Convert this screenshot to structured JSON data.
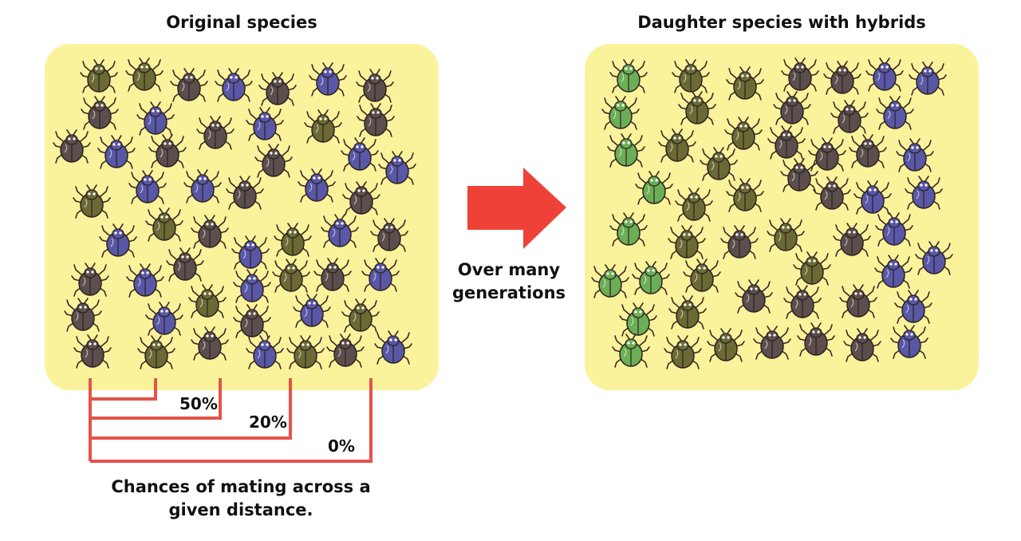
{
  "left_title": "Original species",
  "right_title": "Daughter species with hybrids",
  "arrow_label_line1": "Over many",
  "arrow_label_line2": "generations",
  "distance_labels": [
    "50%",
    "20%",
    "0%"
  ],
  "caption_line1": "Chances of mating across a",
  "caption_line2": "given distance.",
  "colors": {
    "panel": "#fbf29c",
    "arrow": "#ee4238",
    "bracket": "#e5524a",
    "beetle_olive": "#6b6a35",
    "beetle_purple": "#5957a6",
    "beetle_brown": "#5c4e4c",
    "beetle_green": "#6cae55"
  },
  "icons": [
    "beetle-icon",
    "arrow-right-icon"
  ]
}
